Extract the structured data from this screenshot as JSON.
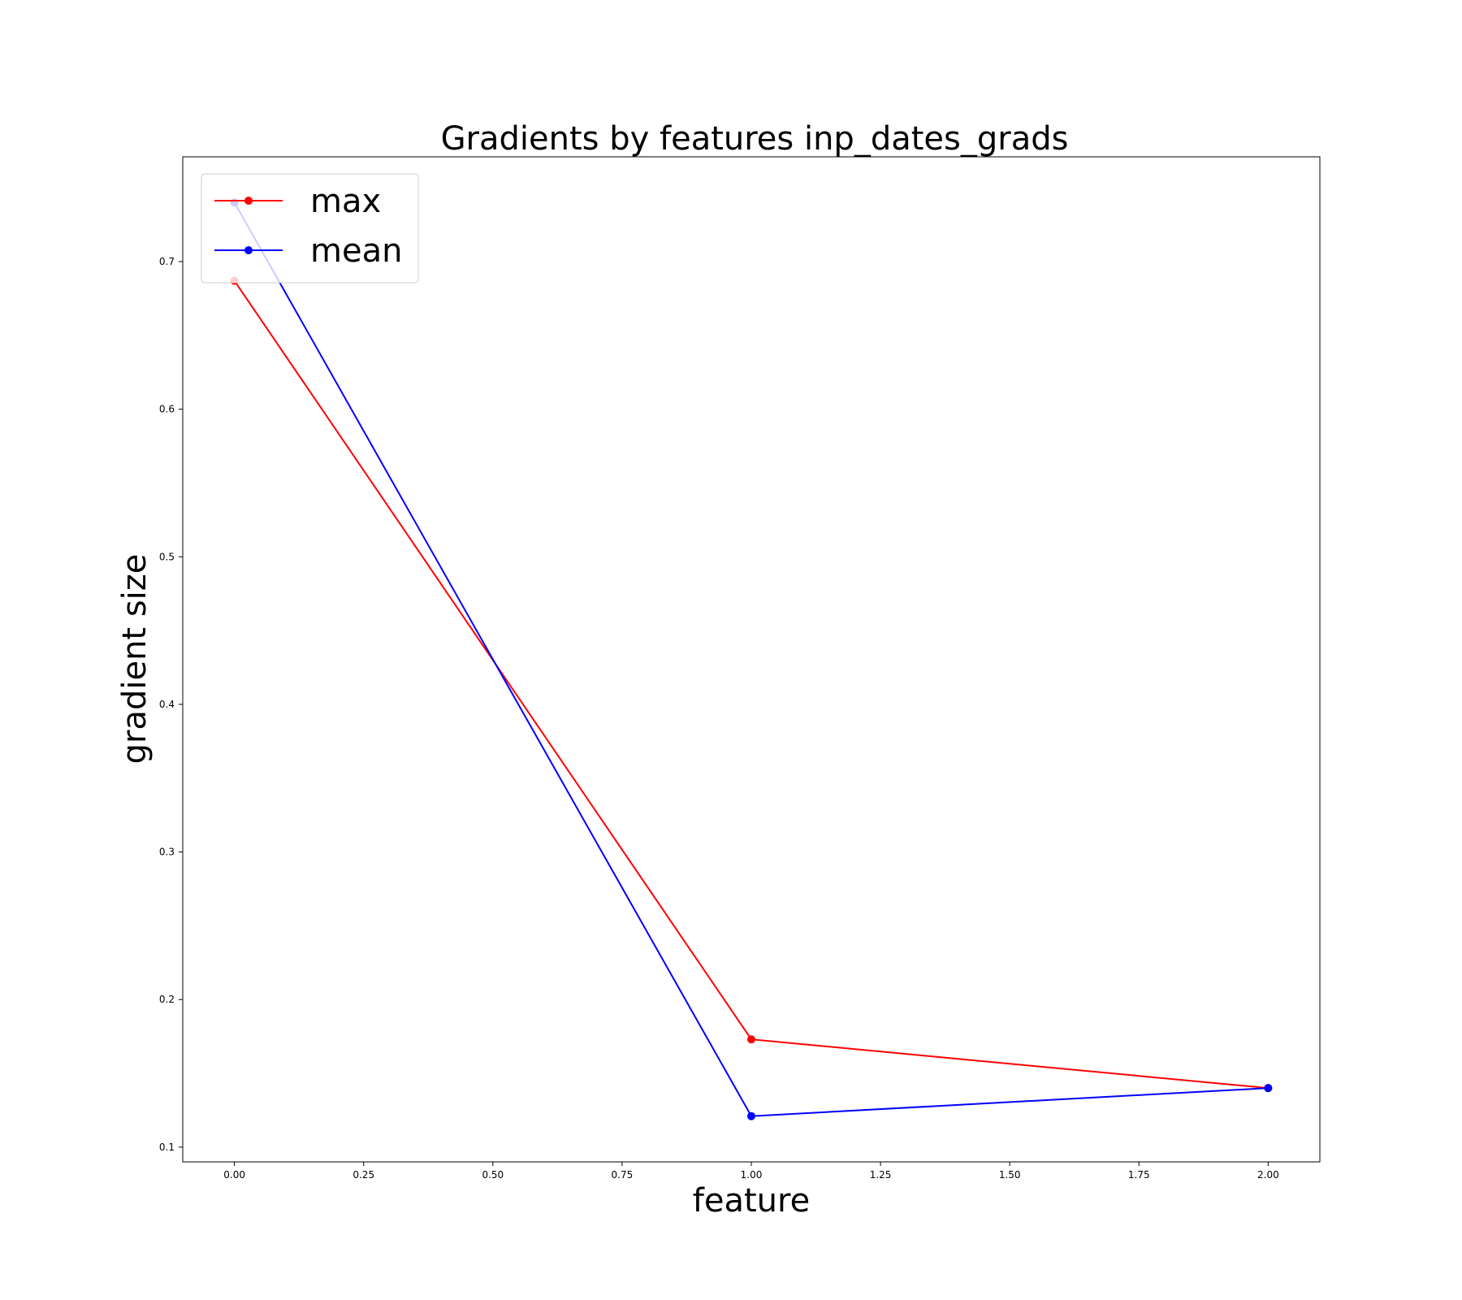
{
  "chart_data": {
    "type": "line",
    "title": "Gradients by features inp_dates_grads",
    "xlabel": "feature",
    "ylabel": "gradient size",
    "x": [
      0,
      1,
      2
    ],
    "xlim": [
      -0.1,
      2.1
    ],
    "ylim": [
      0.09,
      0.771
    ],
    "xticks": [
      "0.00",
      "0.25",
      "0.50",
      "0.75",
      "1.00",
      "1.25",
      "1.50",
      "1.75",
      "2.00"
    ],
    "yticks": [
      "0.1",
      "0.2",
      "0.3",
      "0.4",
      "0.5",
      "0.6",
      "0.7"
    ],
    "grid": false,
    "legend_position": "upper-left",
    "series": [
      {
        "name": "max",
        "color": "#ff0000",
        "values": [
          0.687,
          0.173,
          0.14
        ]
      },
      {
        "name": "mean",
        "color": "#0000ff",
        "values": [
          0.74,
          0.121,
          0.14
        ]
      }
    ]
  }
}
